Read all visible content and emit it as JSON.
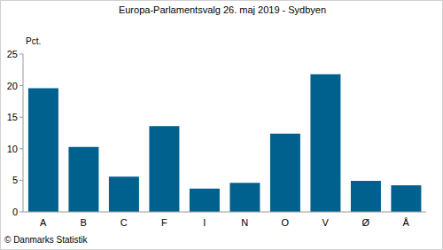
{
  "chart_data": {
    "type": "bar",
    "title": "Europa-Parlamentsvalg 26. maj 2019 - Sydbyen",
    "y_label": "Pct.",
    "annotation": "© Danmarks Statistik",
    "categories": [
      "A",
      "B",
      "C",
      "F",
      "I",
      "N",
      "O",
      "V",
      "Ø",
      "Å"
    ],
    "values": [
      19.6,
      10.3,
      5.6,
      13.6,
      3.7,
      4.6,
      12.4,
      21.8,
      4.9,
      4.2
    ],
    "color": "#00618f",
    "ylim": [
      0,
      25
    ],
    "yticks": [
      0,
      5,
      10,
      15,
      20,
      25
    ],
    "grid": false
  }
}
